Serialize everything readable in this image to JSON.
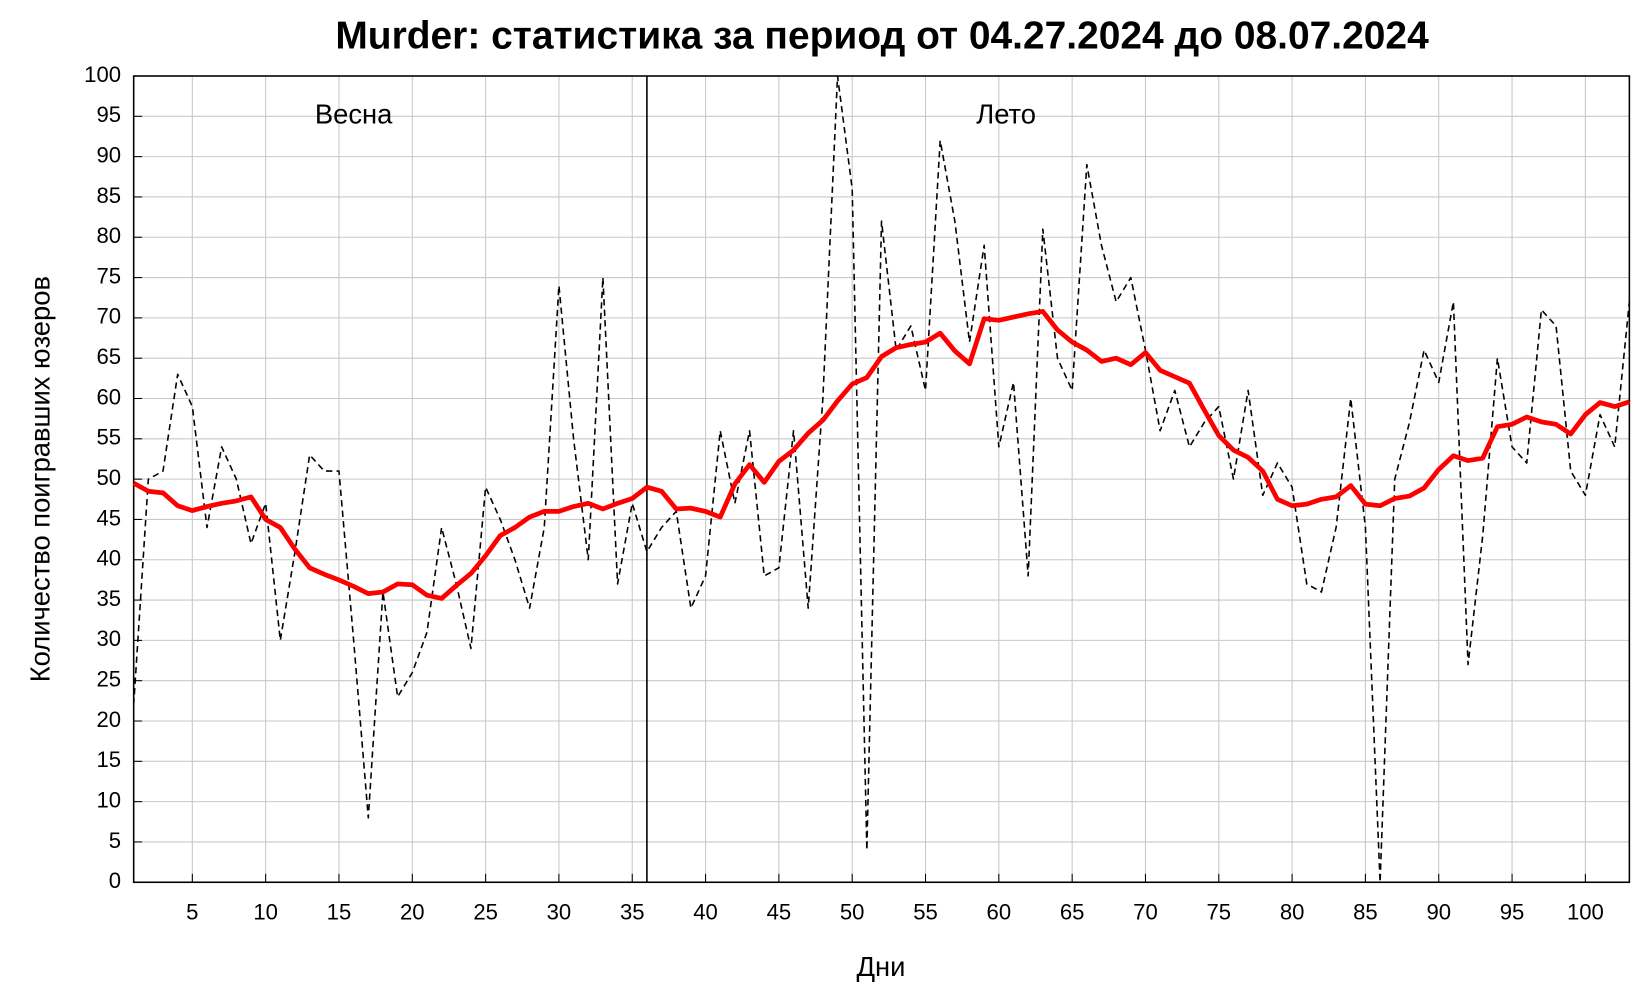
{
  "chart_data": {
    "type": "line",
    "title": "Murder: статистика за период от 04.27.2024 до 08.07.2024",
    "x_label": "Дни",
    "y_label": "Количество поигравших юзеров",
    "x": [
      1,
      2,
      3,
      4,
      5,
      6,
      7,
      8,
      9,
      10,
      11,
      12,
      13,
      14,
      15,
      16,
      17,
      18,
      19,
      20,
      21,
      22,
      23,
      24,
      25,
      26,
      27,
      28,
      29,
      30,
      31,
      32,
      33,
      34,
      35,
      36,
      37,
      38,
      39,
      40,
      41,
      42,
      43,
      44,
      45,
      46,
      47,
      48,
      49,
      50,
      51,
      52,
      53,
      54,
      55,
      56,
      57,
      58,
      59,
      60,
      61,
      62,
      63,
      64,
      65,
      66,
      67,
      68,
      69,
      70,
      71,
      72,
      73,
      74,
      75,
      76,
      77,
      78,
      79,
      80,
      81,
      82,
      83,
      84,
      85,
      86,
      87,
      88,
      89,
      90,
      91,
      92,
      93,
      94,
      95,
      96,
      97,
      98,
      99,
      100,
      101,
      102,
      103
    ],
    "series": [
      {
        "color": "#000000",
        "dashed": true,
        "values": [
          22,
          50,
          51,
          63,
          59,
          44,
          54,
          50,
          42,
          47,
          30,
          41,
          53,
          51,
          51,
          30,
          8,
          36,
          23,
          26,
          31,
          44,
          37,
          29,
          49,
          45,
          40,
          34,
          44,
          74,
          55,
          40,
          75,
          37,
          47,
          41,
          44,
          46,
          34,
          38,
          56,
          47,
          56,
          38,
          39,
          56,
          34,
          60,
          100,
          86,
          4,
          82,
          66,
          69,
          61,
          92,
          82,
          67,
          79,
          54,
          62,
          38,
          81,
          65,
          61,
          89,
          79,
          72,
          75,
          66,
          56,
          61,
          54,
          57,
          59,
          50,
          61,
          48,
          52,
          49,
          37,
          36,
          44,
          60,
          44,
          0,
          50,
          57,
          66,
          62,
          72,
          27,
          43,
          65,
          54,
          52,
          71,
          69,
          51,
          48,
          58,
          54,
          72
        ]
      },
      {
        "color": "#ff0000",
        "dashed": false,
        "values": [
          49.5,
          48.5,
          48.3,
          46.7,
          46.1,
          46.6,
          47,
          47.3,
          47.8,
          45,
          44,
          41.3,
          39,
          38.2,
          37.5,
          36.7,
          35.8,
          36,
          37,
          36.9,
          35.6,
          35.2,
          36.8,
          38.3,
          40.5,
          43,
          44,
          45.3,
          46,
          46,
          46.6,
          47,
          46.3,
          47,
          47.6,
          49,
          48.5,
          46.3,
          46.4,
          46,
          45.3,
          49.4,
          51.8,
          49.6,
          52.2,
          53.6,
          55.7,
          57.3,
          59.7,
          61.8,
          62.6,
          65.2,
          66.3,
          66.7,
          67,
          68.1,
          65.9,
          64.3,
          69.9,
          69.7,
          70.1,
          70.5,
          70.8,
          68.5,
          67,
          66,
          64.6,
          65,
          64.2,
          65.7,
          63.5,
          62.7,
          61.9,
          58.6,
          55.4,
          53.6,
          52.7,
          51,
          47.5,
          46.7,
          46.9,
          47.5,
          47.8,
          49.2,
          46.9,
          46.7,
          47.6,
          47.9,
          48.9,
          51.2,
          52.9,
          52.3,
          52.6,
          56.5,
          56.8,
          57.7,
          57.1,
          56.8,
          55.6,
          58,
          59.5,
          59,
          59.6
        ]
      }
    ],
    "vlines": [
      36
    ],
    "annotations": [
      {
        "text": "Весна",
        "x": 16,
        "y": 95
      },
      {
        "text": "Лето",
        "x": 60.5,
        "y": 95
      }
    ],
    "xlim": [
      1,
      103
    ],
    "xticks": [
      5,
      10,
      15,
      20,
      25,
      30,
      35,
      40,
      45,
      50,
      55,
      60,
      65,
      70,
      75,
      80,
      85,
      90,
      95,
      100
    ],
    "ylim": [
      0,
      100
    ],
    "yticks": [
      0,
      5,
      10,
      15,
      20,
      25,
      30,
      35,
      40,
      45,
      50,
      55,
      60,
      65,
      70,
      75,
      80,
      85,
      90,
      95,
      100
    ],
    "grid": true
  }
}
